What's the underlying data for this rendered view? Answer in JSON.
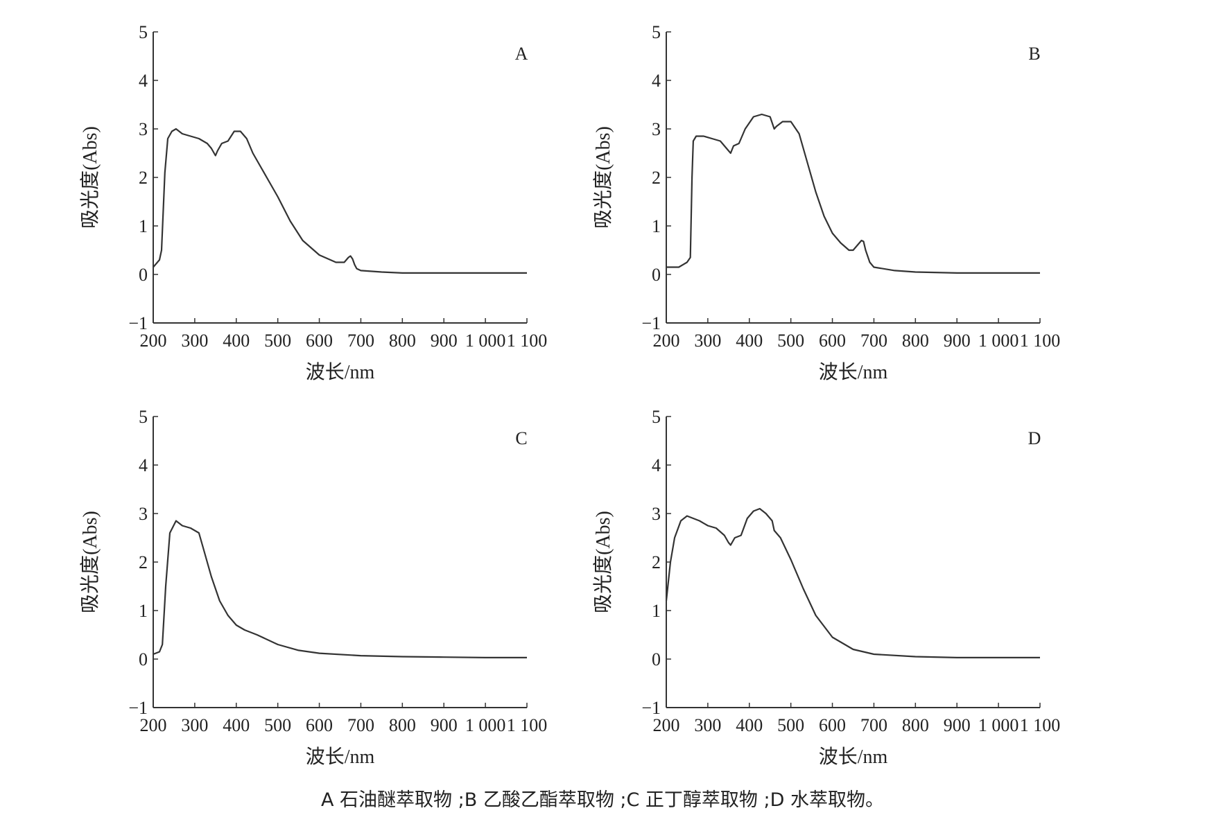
{
  "caption": "A 石油醚萃取物 ;B 乙酸乙酯萃取物 ;C 正丁醇萃取物 ;D 水萃取物。",
  "chart_data": [
    {
      "type": "line",
      "panel_label": "A",
      "xlabel": "波长/nm",
      "ylabel": "吸光度(Abs)",
      "xlim": [
        200,
        1100
      ],
      "ylim": [
        -1,
        5
      ],
      "x_tick_labels": [
        "200",
        "300",
        "400",
        "500",
        "600",
        "700",
        "800",
        "900",
        "1 000",
        "1 100"
      ],
      "y_tick_labels": [
        "−1",
        "0",
        "1",
        "2",
        "3",
        "4",
        "5"
      ],
      "grid": false,
      "series": [
        {
          "x": [
            200,
            215,
            220,
            228,
            235,
            245,
            255,
            270,
            290,
            310,
            330,
            340,
            350,
            355,
            365,
            380,
            395,
            410,
            425,
            440,
            460,
            480,
            500,
            530,
            560,
            600,
            640,
            660,
            670,
            675,
            680,
            685,
            690,
            700,
            750,
            800,
            900,
            1000,
            1100
          ],
          "y": [
            0.15,
            0.3,
            0.5,
            2.1,
            2.8,
            2.95,
            3.0,
            2.9,
            2.85,
            2.8,
            2.7,
            2.6,
            2.45,
            2.55,
            2.7,
            2.75,
            2.95,
            2.95,
            2.8,
            2.5,
            2.2,
            1.9,
            1.6,
            1.1,
            0.7,
            0.4,
            0.25,
            0.25,
            0.35,
            0.38,
            0.32,
            0.2,
            0.12,
            0.08,
            0.05,
            0.03,
            0.03,
            0.03,
            0.03
          ]
        }
      ]
    },
    {
      "type": "line",
      "panel_label": "B",
      "xlabel": "波长/nm",
      "ylabel": "吸光度(Abs)",
      "xlim": [
        200,
        1100
      ],
      "ylim": [
        -1,
        5
      ],
      "x_tick_labels": [
        "200",
        "300",
        "400",
        "500",
        "600",
        "700",
        "800",
        "900",
        "1 000",
        "1 100"
      ],
      "y_tick_labels": [
        "−1",
        "0",
        "1",
        "2",
        "3",
        "4",
        "5"
      ],
      "grid": false,
      "series": [
        {
          "x": [
            200,
            230,
            250,
            258,
            262,
            265,
            272,
            290,
            310,
            330,
            345,
            355,
            362,
            375,
            390,
            410,
            430,
            450,
            460,
            465,
            480,
            500,
            520,
            540,
            560,
            580,
            600,
            620,
            640,
            650,
            660,
            670,
            675,
            680,
            690,
            700,
            750,
            800,
            900,
            1000,
            1100
          ],
          "y": [
            0.15,
            0.15,
            0.25,
            0.35,
            2.0,
            2.75,
            2.85,
            2.85,
            2.8,
            2.75,
            2.6,
            2.5,
            2.65,
            2.7,
            3.0,
            3.25,
            3.3,
            3.25,
            3.0,
            3.05,
            3.15,
            3.15,
            2.9,
            2.3,
            1.7,
            1.2,
            0.85,
            0.65,
            0.5,
            0.5,
            0.6,
            0.7,
            0.68,
            0.5,
            0.25,
            0.15,
            0.08,
            0.05,
            0.03,
            0.03,
            0.03
          ]
        }
      ]
    },
    {
      "type": "line",
      "panel_label": "C",
      "xlabel": "波长/nm",
      "ylabel": "吸光度(Abs)",
      "xlim": [
        200,
        1100
      ],
      "ylim": [
        -1,
        5
      ],
      "x_tick_labels": [
        "200",
        "300",
        "400",
        "500",
        "600",
        "700",
        "800",
        "900",
        "1 000",
        "1 100"
      ],
      "y_tick_labels": [
        "−1",
        "0",
        "1",
        "2",
        "3",
        "4",
        "5"
      ],
      "grid": false,
      "series": [
        {
          "x": [
            200,
            215,
            222,
            230,
            240,
            255,
            270,
            290,
            310,
            320,
            340,
            360,
            380,
            400,
            420,
            450,
            500,
            550,
            600,
            700,
            800,
            900,
            1000,
            1100
          ],
          "y": [
            0.1,
            0.15,
            0.3,
            1.5,
            2.6,
            2.85,
            2.75,
            2.7,
            2.6,
            2.3,
            1.7,
            1.2,
            0.9,
            0.7,
            0.6,
            0.5,
            0.3,
            0.18,
            0.12,
            0.07,
            0.05,
            0.04,
            0.03,
            0.03
          ]
        }
      ]
    },
    {
      "type": "line",
      "panel_label": "D",
      "xlabel": "波长/nm",
      "ylabel": "吸光度(Abs)",
      "xlim": [
        200,
        1100
      ],
      "ylim": [
        -1,
        5
      ],
      "x_tick_labels": [
        "200",
        "300",
        "400",
        "500",
        "600",
        "700",
        "800",
        "900",
        "1 000",
        "1 100"
      ],
      "y_tick_labels": [
        "−1",
        "0",
        "1",
        "2",
        "3",
        "4",
        "5"
      ],
      "grid": false,
      "series": [
        {
          "x": [
            200,
            210,
            220,
            235,
            250,
            265,
            280,
            300,
            320,
            340,
            350,
            355,
            365,
            380,
            395,
            410,
            425,
            440,
            455,
            460,
            475,
            500,
            530,
            560,
            600,
            650,
            700,
            800,
            900,
            1000,
            1100
          ],
          "y": [
            1.2,
            2.0,
            2.5,
            2.85,
            2.95,
            2.9,
            2.85,
            2.75,
            2.7,
            2.55,
            2.4,
            2.35,
            2.5,
            2.55,
            2.9,
            3.05,
            3.1,
            3.0,
            2.85,
            2.65,
            2.5,
            2.05,
            1.45,
            0.9,
            0.45,
            0.2,
            0.1,
            0.05,
            0.03,
            0.03,
            0.03
          ]
        }
      ]
    }
  ]
}
